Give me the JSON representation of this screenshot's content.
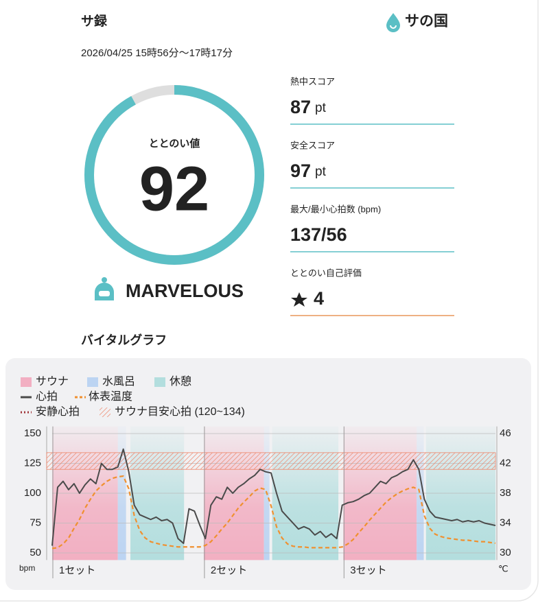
{
  "header": {
    "title": "サ録",
    "brand": "サの国",
    "date": "2026/04/25 15時56分〜17時17分"
  },
  "score": {
    "label": "ととのい値",
    "value": 92,
    "range": [
      0,
      100
    ],
    "color": "#5bbfc5",
    "track_color": "#dedede",
    "rating": "MARVELOUS"
  },
  "stats": [
    {
      "label": "熱中スコア",
      "value": 87,
      "unit": "pt",
      "line_color": "#5bbfc5"
    },
    {
      "label": "安全スコア",
      "value": 97,
      "unit": "pt",
      "line_color": "#5bbfc5"
    },
    {
      "label": "最大/最小心拍数 (bpm)",
      "value": "137/56",
      "line_color": "#5bbfc5"
    },
    {
      "label": "ととのい自己評価",
      "value": 4,
      "line_color": "#e8955a"
    }
  ],
  "section_title": "バイタルグラフ",
  "chart_data": {
    "type": "line",
    "phases": [
      {
        "name": "サウナ",
        "color": "#f2afc2",
        "spans": [
          [
            0,
            12
          ],
          [
            27.7,
            38.7
          ],
          [
            53.2,
            66.6
          ]
        ]
      },
      {
        "name": "水風呂",
        "color": "#bcd4f2",
        "spans": [
          [
            12,
            13.5
          ],
          [
            38.7,
            39.7
          ],
          [
            66.6,
            67.9
          ]
        ]
      },
      {
        "name": "休憩",
        "color": "#b3dede",
        "spans": [
          [
            14.3,
            24.1
          ],
          [
            40.2,
            52.3
          ],
          [
            68.3,
            81
          ]
        ]
      }
    ],
    "x": [
      0,
      1,
      2,
      3,
      4,
      5,
      6,
      7,
      8,
      9,
      10,
      11,
      12,
      13,
      14,
      15,
      16,
      17,
      18,
      19,
      20,
      21,
      22,
      23,
      24,
      25,
      26,
      27,
      28,
      29,
      30,
      31,
      32,
      33,
      34,
      35,
      36,
      37,
      38,
      39,
      40,
      41,
      42,
      43,
      44,
      45,
      46,
      47,
      48,
      49,
      50,
      51,
      52,
      53,
      54,
      55,
      56,
      57,
      58,
      59,
      60,
      61,
      62,
      63,
      64,
      65,
      66,
      67,
      68,
      69,
      70,
      71,
      72,
      73,
      74,
      75,
      76,
      77,
      78,
      79,
      80,
      81
    ],
    "series": [
      {
        "name": "心拍",
        "color": "#4a4a4a",
        "values": [
          56,
          105,
          110,
          103,
          108,
          100,
          107,
          112,
          108,
          125,
          120,
          120,
          122,
          137,
          118,
          90,
          82,
          80,
          78,
          80,
          77,
          78,
          75,
          62,
          58,
          87,
          85,
          73,
          62,
          90,
          97,
          95,
          105,
          100,
          105,
          108,
          112,
          115,
          120,
          118,
          117,
          100,
          85,
          80,
          75,
          70,
          72,
          70,
          65,
          68,
          63,
          66,
          62,
          90,
          92,
          93,
          95,
          98,
          100,
          105,
          110,
          108,
          113,
          115,
          118,
          120,
          128,
          120,
          95,
          85,
          80,
          79,
          78,
          77,
          78,
          76,
          77,
          76,
          77,
          75,
          74,
          73
        ]
      },
      {
        "name": "体表温度",
        "color": "#f0902f",
        "axis": "y2",
        "dashed": true,
        "values": [
          30.6,
          30.7,
          31.2,
          32,
          33.3,
          34.5,
          36,
          37.2,
          38.3,
          39,
          39.6,
          40,
          40.2,
          40.3,
          38.6,
          35,
          33,
          32,
          31.5,
          31.3,
          31.1,
          31,
          30.9,
          30.8,
          30.8,
          30.8,
          30.8,
          30.8,
          31,
          31.5,
          32.3,
          33.2,
          34,
          35,
          36,
          36.8,
          37.5,
          38.3,
          38.7,
          38.5,
          36.3,
          33.5,
          32,
          31.2,
          30.9,
          30.8,
          30.8,
          30.7,
          30.7,
          30.7,
          30.7,
          30.7,
          30.7,
          30.8,
          31.2,
          31.8,
          32.7,
          33.5,
          34.4,
          35.2,
          36,
          36.8,
          37.4,
          37.9,
          38.3,
          38.6,
          38.8,
          38.5,
          35,
          33.3,
          32.5,
          32.2,
          32,
          31.9,
          31.8,
          31.7,
          31.7,
          31.6,
          31.5,
          31.5,
          31.4,
          31.3
        ]
      }
    ],
    "rest_hr": {
      "name": "安静心拍",
      "color": "#a0353a"
    },
    "target_band": {
      "name": "サウナ目安心拍 (120~134)",
      "range": [
        120,
        134
      ],
      "color": "#ee8468"
    },
    "sets": [
      {
        "label": "1セット",
        "x": 0
      },
      {
        "label": "2セット",
        "x": 27.7
      },
      {
        "label": "3セット",
        "x": 53.2
      }
    ],
    "xlim": [
      0,
      81
    ],
    "ylim": [
      44,
      156
    ],
    "yticks": [
      50,
      75,
      100,
      125,
      150
    ],
    "y_unit": "bpm",
    "y2lim": [
      29.04,
      46.96
    ],
    "y2ticks": [
      30,
      34,
      38,
      42,
      46
    ],
    "y2_unit": "℃",
    "y2_color": "#f0902f",
    "grid": true
  }
}
